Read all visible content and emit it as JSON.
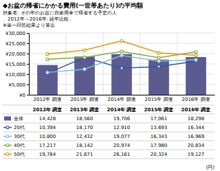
{
  "chart_data": {
    "type": "bar",
    "title": "◆お盆の帰省にかかる費用(一世帯あたり)の平均額",
    "subtitle": [
      "対象者: その年のお盆に自家用車で帰省する予定の人",
      "、2012年～2016年: 経年比較」",
      "※単一回答結果より算出"
    ],
    "ylabel": "(円)",
    "categories": [
      "2012年 調査",
      "2013年 調査",
      "2014年 調査",
      "2015年 調査",
      "2016年 調査"
    ],
    "series": [
      {
        "name": "全体",
        "type": "bar",
        "color": "#5b5b8f",
        "values": [
          14428,
          18560,
          19706,
          17061,
          18298
        ],
        "value_labels": [
          "14,428",
          "18,560",
          "19,706",
          "17,061",
          "18,298"
        ]
      },
      {
        "name": "20代",
        "type": "line",
        "marker": "circle",
        "color": "#3355aa",
        "values": [
          10394,
          18170,
          12910,
          13693,
          16344
        ],
        "value_labels": [
          "10,394",
          "18,170",
          "12,910",
          "13,693",
          "16,344"
        ]
      },
      {
        "name": "30代",
        "type": "line",
        "marker": "circle",
        "color": "#88bbdd",
        "values": [
          10800,
          12432,
          19077,
          16343,
          16969
        ],
        "value_labels": [
          "10,800",
          "12,432",
          "19,077",
          "16,343",
          "16,969"
        ]
      },
      {
        "name": "40代",
        "type": "line",
        "marker": "circle",
        "color": "#88aa33",
        "values": [
          17217,
          18142,
          20974,
          17980,
          20834
        ],
        "value_labels": [
          "17,217",
          "18,142",
          "20,974",
          "17,980",
          "20,834"
        ]
      },
      {
        "name": "50代",
        "type": "line",
        "marker": "circle",
        "color": "#dd9900",
        "values": [
          19784,
          21671,
          26161,
          20324,
          19127
        ],
        "value_labels": [
          "19,784",
          "21,671",
          "26,161",
          "20,324",
          "19,127"
        ]
      }
    ],
    "ylim": [
      0,
      30000
    ],
    "yticks": [
      {
        "value": 0,
        "label": "¥0"
      },
      {
        "value": 5000,
        "label": "¥5,000"
      },
      {
        "value": 10000,
        "label": "¥10,000"
      },
      {
        "value": 15000,
        "label": "¥15,000"
      },
      {
        "value": 20000,
        "label": "¥20,000"
      },
      {
        "value": 25000,
        "label": "¥25,000"
      },
      {
        "value": 30000,
        "label": "¥30,000"
      }
    ],
    "grid": true
  }
}
